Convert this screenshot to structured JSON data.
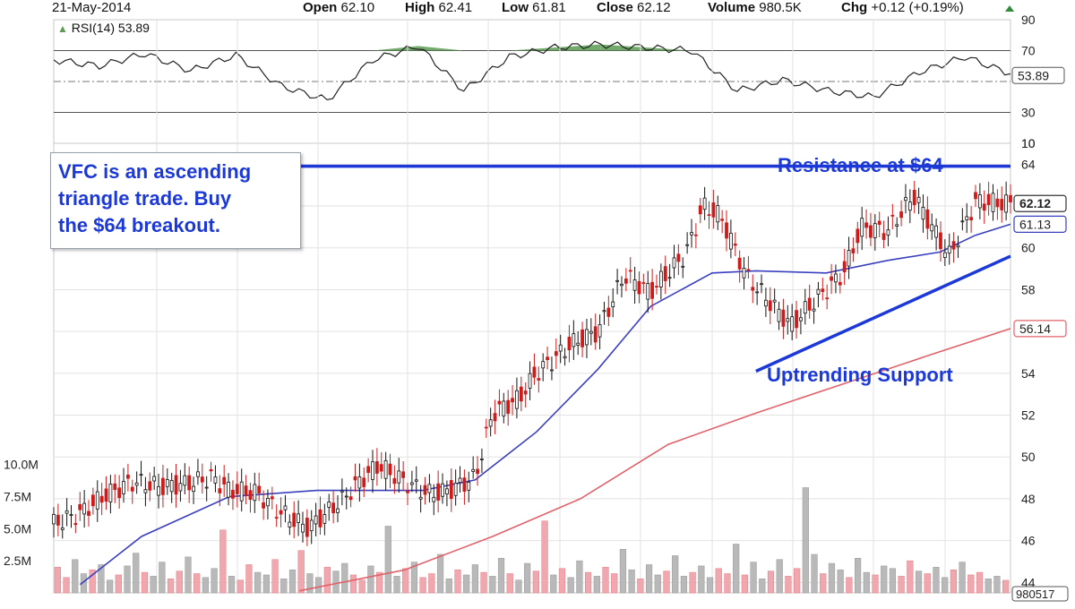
{
  "header": {
    "date": "21-May-2014",
    "open_label": "Open",
    "open_value": "62.10",
    "high_label": "High",
    "high_value": "62.41",
    "low_label": "Low",
    "low_value": "61.81",
    "close_label": "Close",
    "close_value": "62.12",
    "volume_label": "Volume",
    "volume_value": "980.5K",
    "chg_label": "Chg",
    "chg_value": "+0.12 (+0.19%)",
    "arrow_icon": "up-arrow-icon"
  },
  "rsi_label": "RSI(14) 53.89",
  "annotations": {
    "note_line1": "VFC is an ascending",
    "note_line2": "triangle trade. Buy",
    "note_line3": "the $64 breakout.",
    "resistance": "Resistance at $64",
    "support": "Uptrending Support"
  },
  "colors": {
    "annotation": "#1c39d8",
    "ma_short": "#3a3fbf",
    "ma_long": "#e0626a",
    "down_candle": "#d01b1b",
    "up_candle": "#111111",
    "rsi_fill": "#5b9c52",
    "vol_up": "#b9b9b9",
    "vol_down": "#f0a7ad"
  },
  "chart_data": [
    {
      "type": "line",
      "title": "RSI(14) 53.89",
      "yticks": [
        90,
        70,
        30,
        10
      ],
      "reference_levels": [
        70,
        50,
        30
      ],
      "last_value_badge": "53.89",
      "ylim": [
        10,
        90
      ],
      "x": [
        "start",
        "p1",
        "p2",
        "p3",
        "p4",
        "p5",
        "p6",
        "p7",
        "p8",
        "p9",
        "p10",
        "p11",
        "p12",
        "p13",
        "p14",
        "p15",
        "p16",
        "p17",
        "p18",
        "p19",
        "p20",
        "end"
      ],
      "values": [
        64,
        60,
        68,
        57,
        67,
        47,
        38,
        64,
        73,
        44,
        66,
        72,
        74,
        72,
        70,
        44,
        51,
        44,
        40,
        56,
        66,
        55
      ]
    },
    {
      "type": "line",
      "title": "",
      "yticks": [
        64,
        62,
        60,
        58,
        56,
        54,
        52,
        50,
        48,
        46,
        44
      ],
      "ylim": [
        43.5,
        65
      ],
      "price_badges": [
        {
          "label": "62.12",
          "value": 62.12
        },
        {
          "label": "61.13",
          "value": 61.13
        },
        {
          "label": "56.14",
          "value": 56.14
        }
      ],
      "series": [
        {
          "x": [
            0,
            3,
            6,
            9,
            12,
            15,
            18,
            20,
            23,
            26,
            29,
            33,
            35,
            37,
            40,
            43,
            45,
            48,
            50,
            53,
            55,
            59,
            62,
            65,
            68,
            72,
            74,
            76,
            79,
            82,
            84,
            88,
            90,
            92,
            95,
            98,
            102,
            105,
            109
          ],
          "values": [
            46.8,
            47.3,
            48.2,
            48.8,
            48.6,
            48.7,
            49.0,
            48.4,
            48.3,
            47.3,
            46.6,
            48.0,
            48.9,
            49.6,
            48.8,
            48.2,
            48.4,
            49.0,
            52.1,
            52.8,
            54.0,
            55.4,
            56.0,
            58.7,
            57.9,
            59.7,
            62.0,
            61.5,
            58.6,
            57.2,
            56.3,
            58.0,
            58.8,
            61.0,
            60.8,
            62.5,
            59.6,
            62.2,
            62.12
          ]
        },
        {
          "name": "",
          "x": [
            3,
            10,
            20,
            30,
            42,
            48,
            55,
            62,
            68,
            75,
            80,
            88,
            95,
            101,
            105,
            109
          ],
          "values": [
            43.9,
            46.2,
            48.1,
            48.4,
            48.4,
            48.9,
            51.2,
            54.2,
            57.2,
            58.8,
            58.9,
            58.8,
            59.4,
            59.8,
            60.6,
            61.13
          ]
        },
        {
          "name": "",
          "x": [
            28,
            40,
            50,
            60,
            70,
            80,
            90,
            100,
            109
          ],
          "values": [
            43.6,
            44.6,
            46.2,
            48.0,
            50.6,
            52.1,
            53.5,
            54.9,
            56.14
          ]
        }
      ],
      "trendlines": [
        {
          "name": "resistance",
          "from": [
            28,
            63.9
          ],
          "to": [
            109,
            63.9
          ]
        },
        {
          "name": "support",
          "from": [
            80,
            54.1
          ],
          "to": [
            109,
            59.6
          ]
        }
      ]
    },
    {
      "type": "bar",
      "title": "",
      "yticks": [
        "10.0M",
        "7.5M",
        "5.0M",
        "2.5M"
      ],
      "ylim": [
        0,
        12
      ],
      "last_value_badge": "980517",
      "values_millions": [
        2.0,
        1.2,
        2.6,
        1.5,
        1.8,
        2.2,
        1.0,
        1.4,
        2.1,
        3.1,
        1.6,
        1.3,
        2.4,
        1.1,
        1.7,
        2.8,
        1.5,
        1.2,
        1.9,
        4.9,
        1.3,
        1.0,
        2.2,
        1.6,
        1.4,
        2.6,
        1.1,
        1.8,
        3.3,
        1.5,
        1.2,
        2.0,
        1.7,
        2.3,
        1.4,
        1.0,
        2.1,
        1.6,
        5.2,
        1.3,
        1.9,
        2.4,
        1.2,
        1.5,
        3.0,
        1.1,
        1.8,
        1.4,
        2.2,
        1.6,
        1.3,
        2.7,
        1.5,
        1.0,
        2.3,
        1.7,
        5.6,
        1.4,
        1.9,
        1.2,
        2.5,
        1.6,
        1.3,
        2.0,
        1.5,
        3.4,
        1.8,
        1.1,
        2.2,
        1.4,
        1.7,
        2.9,
        1.3,
        1.6,
        2.1,
        1.2,
        1.9,
        1.5,
        3.8,
        1.4,
        2.4,
        1.1,
        1.7,
        2.6,
        1.3,
        1.9,
        8.2,
        3.0,
        1.5,
        2.3,
        1.8,
        1.2,
        2.7,
        1.6,
        1.4,
        2.1,
        1.9,
        1.3,
        2.5,
        1.7,
        1.5,
        2.0,
        1.2,
        1.8,
        2.4,
        1.4,
        1.6,
        1.1,
        1.3,
        0.98
      ],
      "colors_pattern": "red for down days, grey for up days"
    }
  ]
}
